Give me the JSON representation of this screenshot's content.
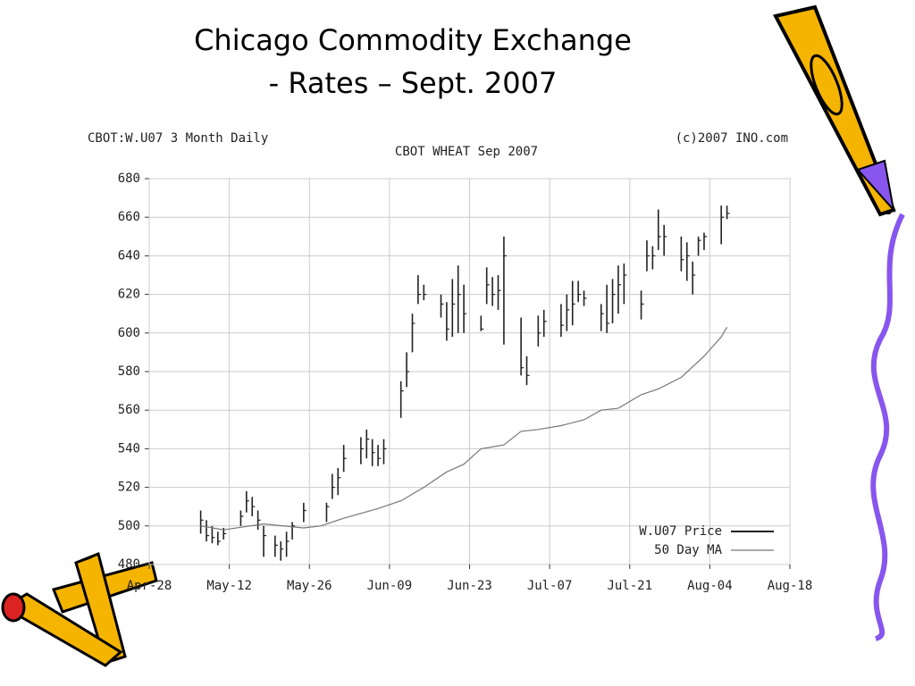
{
  "chart_data": {
    "type": "ohlc",
    "title": "Chicago Commodity Exchange",
    "subtitle": "- Rates – Sept. 2007",
    "header_left": "CBOT:W.U07 3 Month Daily",
    "header_center": "CBOT WHEAT Sep 2007",
    "header_right": "(c)2007 INO.com",
    "xlim": [
      0,
      112
    ],
    "xticks": [
      {
        "value": 0,
        "label": "Apr-28"
      },
      {
        "value": 14,
        "label": "May-12"
      },
      {
        "value": 28,
        "label": "May-26"
      },
      {
        "value": 42,
        "label": "Jun-09"
      },
      {
        "value": 56,
        "label": "Jun-23"
      },
      {
        "value": 70,
        "label": "Jul-07"
      },
      {
        "value": 84,
        "label": "Jul-21"
      },
      {
        "value": 98,
        "label": "Aug-04"
      },
      {
        "value": 112,
        "label": "Aug-18"
      }
    ],
    "ylim": [
      480,
      680
    ],
    "yticks": [
      480,
      500,
      520,
      540,
      560,
      580,
      600,
      620,
      640,
      660,
      680
    ],
    "grid": true,
    "legend": "lower right",
    "series": [
      {
        "name": "W.U07 Price",
        "color": "#222222",
        "x": [
          9,
          10,
          11,
          12,
          13,
          16,
          17,
          18,
          19,
          20,
          22,
          23,
          24,
          25,
          27,
          31,
          32,
          33,
          34,
          37,
          38,
          39,
          40,
          41,
          44,
          45,
          46,
          47,
          48,
          51,
          52,
          53,
          54,
          55,
          58,
          59,
          60,
          61,
          62,
          65,
          66,
          68,
          69,
          72,
          73,
          74,
          75,
          76,
          79,
          80,
          81,
          82,
          83,
          86,
          87,
          88,
          89,
          90,
          93,
          94,
          95,
          96,
          97,
          100,
          101
        ],
        "high": [
          508,
          503,
          500,
          497,
          499,
          508,
          518,
          515,
          508,
          500,
          495,
          492,
          497,
          502,
          512,
          512,
          527,
          530,
          542,
          546,
          550,
          545,
          542,
          545,
          575,
          590,
          610,
          630,
          625,
          620,
          616,
          628,
          635,
          625,
          609,
          634,
          629,
          630,
          650,
          608,
          588,
          609,
          612,
          615,
          620,
          627,
          627,
          622,
          615,
          625,
          628,
          635,
          636,
          622,
          648,
          645,
          664,
          656,
          650,
          647,
          637,
          650,
          652,
          666,
          666
        ],
        "low": [
          496,
          492,
          491,
          490,
          493,
          500,
          507,
          505,
          498,
          484,
          484,
          482,
          484,
          493,
          502,
          502,
          514,
          516,
          528,
          532,
          535,
          531,
          531,
          532,
          556,
          572,
          590,
          615,
          617,
          608,
          596,
          598,
          600,
          600,
          601,
          615,
          614,
          612,
          594,
          578,
          573,
          593,
          598,
          598,
          601,
          604,
          616,
          614,
          601,
          600,
          605,
          610,
          615,
          607,
          632,
          633,
          643,
          640,
          632,
          627,
          620,
          640,
          643,
          646,
          659
        ],
        "close": [
          503,
          495,
          494,
          492,
          496,
          505,
          513,
          510,
          503,
          495,
          490,
          488,
          492,
          500,
          508,
          510,
          520,
          525,
          535,
          540,
          545,
          538,
          535,
          540,
          570,
          580,
          605,
          620,
          620,
          615,
          602,
          615,
          620,
          610,
          602,
          625,
          620,
          622,
          640,
          582,
          578,
          600,
          606,
          604,
          612,
          615,
          620,
          618,
          610,
          605,
          620,
          625,
          630,
          615,
          640,
          640,
          650,
          650,
          638,
          640,
          630,
          648,
          650,
          660,
          662
        ]
      },
      {
        "name": "50 Day MA",
        "color": "#777777",
        "x": [
          9,
          13,
          20,
          27,
          30,
          34,
          40,
          44,
          48,
          52,
          55,
          58,
          62,
          65,
          68,
          72,
          76,
          79,
          82,
          86,
          89,
          93,
          97,
          100,
          101
        ],
        "values": [
          500,
          498,
          501,
          499,
          500,
          504,
          509,
          513,
          520,
          528,
          532,
          540,
          542,
          549,
          550,
          552,
          555,
          560,
          561,
          568,
          571,
          577,
          588,
          598,
          603
        ]
      }
    ]
  }
}
